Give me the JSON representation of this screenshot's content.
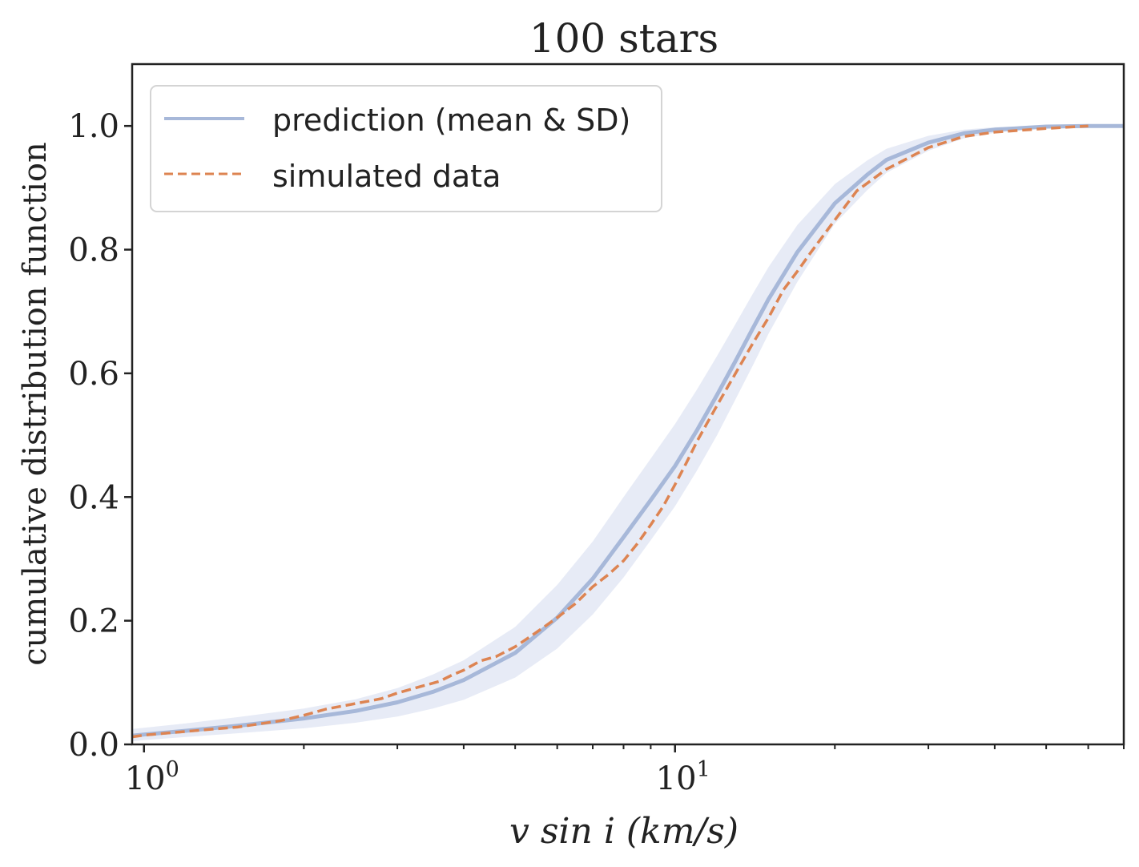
{
  "chart_data": {
    "type": "line",
    "title": "100 stars",
    "xlabel": "v sin i (km/s)",
    "ylabel": "cumulative distribution function",
    "x_scale": "log",
    "xlim": [
      0.95,
      70
    ],
    "ylim": [
      0.0,
      1.1
    ],
    "x_ticks": [
      {
        "value": 1,
        "base": "10",
        "exp": "0"
      },
      {
        "value": 10,
        "base": "10",
        "exp": "1"
      }
    ],
    "y_ticks": [
      "0.0",
      "0.2",
      "0.4",
      "0.6",
      "0.8",
      "1.0"
    ],
    "grid": false,
    "legend_position": "top-left",
    "colors": {
      "prediction": "#a7b8d9",
      "band": "#e3e8f4",
      "data": "#dd8452",
      "axes": "#222222"
    },
    "series": [
      {
        "name": "prediction (mean & SD)",
        "style": "solid",
        "x": [
          0.95,
          1.0,
          1.2,
          1.5,
          2.0,
          2.5,
          3.0,
          3.5,
          4.0,
          5.0,
          6.0,
          7.0,
          8.0,
          9.0,
          10.0,
          11.0,
          12.0,
          13.0,
          14.0,
          15.0,
          17.0,
          20.0,
          23.0,
          25.0,
          30.0,
          35.0,
          40.0,
          50.0,
          60.0,
          70.0
        ],
        "y": [
          0.014,
          0.016,
          0.022,
          0.03,
          0.042,
          0.054,
          0.068,
          0.085,
          0.104,
          0.148,
          0.205,
          0.268,
          0.335,
          0.395,
          0.45,
          0.508,
          0.565,
          0.62,
          0.672,
          0.72,
          0.796,
          0.875,
          0.921,
          0.945,
          0.973,
          0.988,
          0.994,
          0.999,
          1.0,
          1.0
        ],
        "band_lower": [
          0.005,
          0.007,
          0.012,
          0.018,
          0.026,
          0.035,
          0.045,
          0.058,
          0.072,
          0.108,
          0.155,
          0.21,
          0.27,
          0.33,
          0.385,
          0.443,
          0.5,
          0.558,
          0.612,
          0.664,
          0.748,
          0.842,
          0.896,
          0.924,
          0.96,
          0.98,
          0.989,
          0.997,
          0.999,
          1.0
        ],
        "band_upper": [
          0.025,
          0.027,
          0.034,
          0.044,
          0.058,
          0.073,
          0.091,
          0.113,
          0.136,
          0.19,
          0.258,
          0.328,
          0.4,
          0.462,
          0.518,
          0.574,
          0.628,
          0.68,
          0.728,
          0.772,
          0.84,
          0.906,
          0.944,
          0.963,
          0.984,
          0.994,
          0.998,
          1.0,
          1.0,
          1.0
        ]
      },
      {
        "name": "simulated data",
        "style": "dashed",
        "x": [
          0.95,
          1.0,
          1.2,
          1.5,
          1.8,
          2.0,
          2.2,
          2.5,
          2.8,
          3.0,
          3.3,
          3.6,
          3.8,
          4.0,
          4.3,
          4.6,
          5.0,
          5.5,
          6.0,
          6.5,
          7.0,
          7.5,
          8.0,
          8.5,
          9.0,
          9.5,
          10.0,
          10.5,
          11.0,
          11.5,
          12.0,
          13.0,
          14.0,
          15.0,
          16.0,
          17.0,
          18.0,
          20.0,
          22.0,
          25.0,
          30.0,
          35.0,
          40.0,
          50.0,
          60.0
        ],
        "y": [
          0.012,
          0.015,
          0.021,
          0.028,
          0.038,
          0.047,
          0.057,
          0.066,
          0.074,
          0.083,
          0.093,
          0.102,
          0.112,
          0.12,
          0.135,
          0.142,
          0.158,
          0.182,
          0.205,
          0.228,
          0.255,
          0.275,
          0.297,
          0.325,
          0.355,
          0.385,
          0.42,
          0.455,
          0.49,
          0.52,
          0.548,
          0.6,
          0.648,
          0.69,
          0.735,
          0.765,
          0.795,
          0.848,
          0.895,
          0.93,
          0.965,
          0.983,
          0.99,
          0.996,
          1.0
        ]
      }
    ]
  }
}
